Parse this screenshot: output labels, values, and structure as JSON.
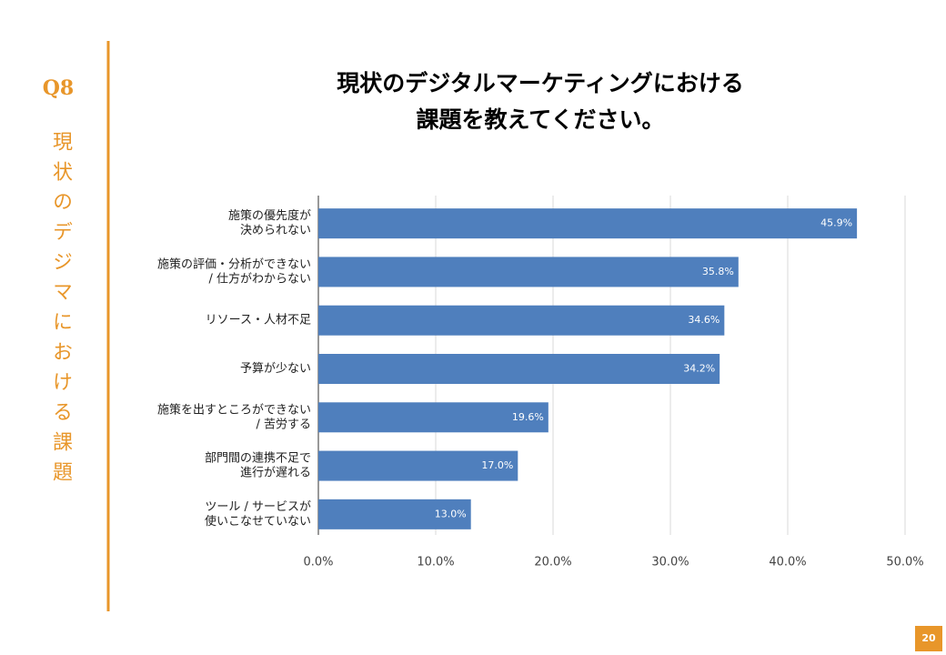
{
  "side": {
    "question": "Q8",
    "topic": "現状のデジマにおける課題"
  },
  "page_number": "20",
  "chart_data": {
    "type": "bar",
    "orientation": "horizontal",
    "title": [
      "現状のデジタルマーケティングにおける",
      "課題を教えてください。"
    ],
    "categories": [
      [
        "施策の優先度が",
        "決められない"
      ],
      [
        "施策の評価・分析ができない",
        "/ 仕方がわからない"
      ],
      [
        "リソース・人材不足"
      ],
      [
        "予算が少ない"
      ],
      [
        "施策を出すところができない",
        "/ 苦労する"
      ],
      [
        "部門間の連携不足で",
        "進行が遅れる"
      ],
      [
        "ツール / サービスが",
        "使いこなせていない"
      ]
    ],
    "values": [
      45.9,
      35.8,
      34.6,
      34.2,
      19.6,
      17.0,
      13.0
    ],
    "value_labels": [
      "45.9%",
      "35.8%",
      "34.6%",
      "34.2%",
      "19.6%",
      "17.0%",
      "13.0%"
    ],
    "color": "#4f7fbd",
    "xlim": [
      0,
      50
    ],
    "xticks": [
      {
        "value": 0,
        "label": "0.0%"
      },
      {
        "value": 10,
        "label": "10.0%"
      },
      {
        "value": 20,
        "label": "20.0%"
      },
      {
        "value": 30,
        "label": "30.0%"
      },
      {
        "value": 40,
        "label": "40.0%"
      },
      {
        "value": 50,
        "label": "50.0%"
      }
    ],
    "grid": true
  }
}
